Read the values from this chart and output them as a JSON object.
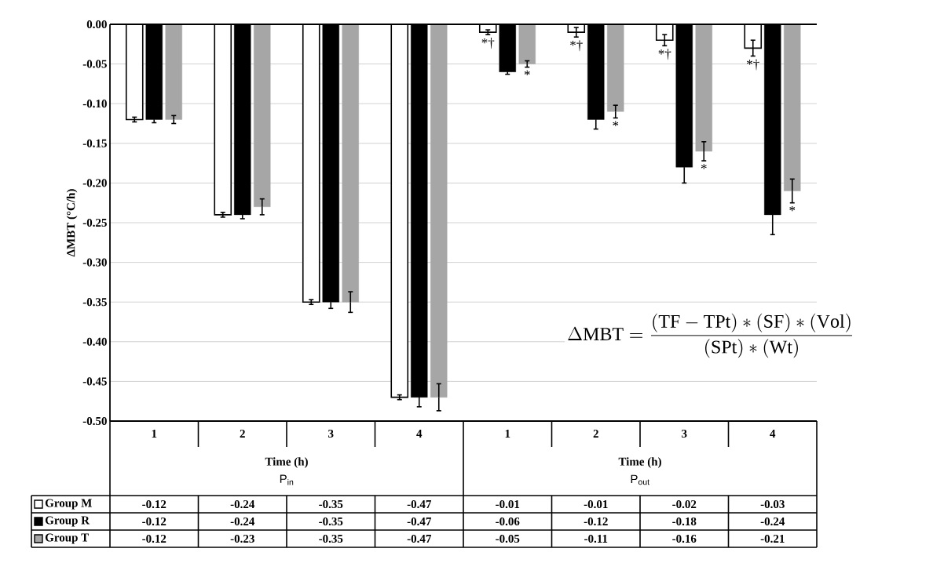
{
  "chart_data": {
    "type": "bar",
    "xlabel": "Time (h)",
    "ylabel": "ΔMBT (°C/h)",
    "categories": [
      "1",
      "2",
      "3",
      "4",
      "1",
      "2",
      "3",
      "4"
    ],
    "series": [
      {
        "name": "Group M",
        "color": "#ffffff",
        "values": [
          -0.12,
          -0.24,
          -0.35,
          -0.47,
          -0.01,
          -0.01,
          -0.02,
          -0.03
        ],
        "errors": [
          0.003,
          0.003,
          0.003,
          0.003,
          0.003,
          0.006,
          0.007,
          0.01
        ]
      },
      {
        "name": "Group R",
        "color": "#000000",
        "values": [
          -0.12,
          -0.24,
          -0.35,
          -0.47,
          -0.06,
          -0.12,
          -0.18,
          -0.24
        ],
        "errors": [
          0.004,
          0.005,
          0.008,
          0.012,
          0.003,
          0.012,
          0.02,
          0.025
        ]
      },
      {
        "name": "Group T",
        "color": "#a6a6a6",
        "values": [
          -0.12,
          -0.23,
          -0.35,
          -0.47,
          -0.05,
          -0.11,
          -0.16,
          -0.21
        ],
        "errors": [
          0.005,
          0.01,
          0.013,
          0.017,
          0.004,
          0.008,
          0.012,
          0.015
        ]
      }
    ],
    "ylim": [
      -0.5,
      0
    ],
    "yticks": [
      {
        "value": 0,
        "label": "0.00"
      },
      {
        "value": -0.05,
        "label": "-0.05"
      },
      {
        "value": -0.1,
        "label": "-0.10"
      },
      {
        "value": -0.15,
        "label": "-0.15"
      },
      {
        "value": -0.2,
        "label": "-0.20"
      },
      {
        "value": -0.25,
        "label": "-0.25"
      },
      {
        "value": -0.3,
        "label": "-0.30"
      },
      {
        "value": -0.35,
        "label": "-0.35"
      },
      {
        "value": -0.4,
        "label": "-0.40"
      },
      {
        "value": -0.45,
        "label": "-0.45"
      },
      {
        "value": -0.5,
        "label": "-0.50"
      }
    ],
    "grid": "y",
    "legend": "bottom",
    "data_labels": true,
    "annotations": [
      "\\Delta\\mathrm{MBT} = \\frac{(\\mathrm{TF} - \\mathrm{TPt}) * (\\mathrm{SF}) * (\\mathrm{Vol})}{(\\mathrm{SPt}) * (\\mathrm{Wt})}",
      "P$_{in}$",
      "P$_{out}$",
      "*†",
      "*",
      "*†",
      "*",
      "*†",
      "*",
      "*†",
      "*"
    ]
  }
}
